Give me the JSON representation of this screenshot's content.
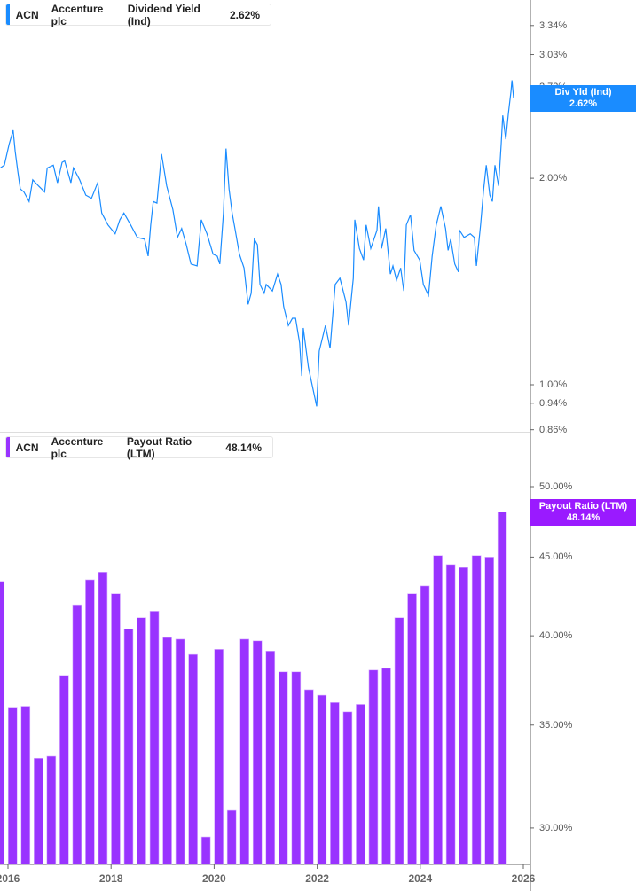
{
  "colors": {
    "yield_line": "#1a8cff",
    "bars": "#9933ff",
    "bar_edge": "#d9b3ff",
    "axis": "#999999"
  },
  "top_legend": {
    "ticker": "ACN",
    "company": "Accenture plc",
    "metric": "Dividend Yield (Ind)",
    "value": "2.62%"
  },
  "bottom_legend": {
    "ticker": "ACN",
    "company": "Accenture plc",
    "metric": "Payout Ratio (LTM)",
    "value": "48.14%"
  },
  "top_badge": {
    "label": "Div Yld (Ind)",
    "value": "2.62%"
  },
  "bottom_badge": {
    "label": "Payout Ratio (LTM)",
    "value": "48.14%"
  },
  "chart_data": [
    {
      "type": "line",
      "series": [
        {
          "name": "Dividend Yield (Ind)",
          "x_years": [
            2015.85,
            2015.93,
            2016.02,
            2016.1,
            2016.14,
            2016.19,
            2016.24,
            2016.31,
            2016.41,
            2016.48,
            2016.59,
            2016.71,
            2016.76,
            2016.88,
            2016.96,
            2017.05,
            2017.1,
            2017.22,
            2017.27,
            2017.39,
            2017.51,
            2017.62,
            2017.74,
            2017.82,
            2017.94,
            2018.08,
            2018.17,
            2018.25,
            2018.38,
            2018.51,
            2018.65,
            2018.72,
            2018.77,
            2018.82,
            2018.89,
            2018.98,
            2019.08,
            2019.2,
            2019.29,
            2019.37,
            2019.46,
            2019.55,
            2019.67,
            2019.75,
            2019.86,
            2019.98,
            2020.06,
            2020.11,
            2020.18,
            2020.23,
            2020.29,
            2020.35,
            2020.41,
            2020.49,
            2020.58,
            2020.66,
            2020.72,
            2020.78,
            2020.84,
            2020.89,
            2020.97,
            2021.01,
            2021.13,
            2021.23,
            2021.3,
            2021.35,
            2021.44,
            2021.52,
            2021.58,
            2021.66,
            2021.7,
            2021.73,
            2021.83,
            2021.99,
            2022.04,
            2022.16,
            2022.25,
            2022.35,
            2022.44,
            2022.56,
            2022.61,
            2022.7,
            2022.73,
            2022.82,
            2022.9,
            2022.95,
            2023.04,
            2023.16,
            2023.19,
            2023.25,
            2023.33,
            2023.42,
            2023.47,
            2023.54,
            2023.62,
            2023.68,
            2023.73,
            2023.81,
            2023.88,
            2023.99,
            2024.06,
            2024.16,
            2024.23,
            2024.31,
            2024.4,
            2024.49,
            2024.54,
            2024.59,
            2024.67,
            2024.74,
            2024.76,
            2024.85,
            2024.97,
            2025.05,
            2025.09,
            2025.17,
            2025.23,
            2025.28,
            2025.35,
            2025.4,
            2025.45,
            2025.52,
            2025.57,
            2025.6,
            2025.66,
            2025.71,
            2025.76,
            2025.78,
            2025.81
          ],
          "values": [
            2.07,
            2.09,
            2.24,
            2.35,
            2.19,
            2.05,
            1.93,
            1.91,
            1.85,
            1.99,
            1.95,
            1.91,
            2.07,
            2.09,
            1.97,
            2.11,
            2.12,
            1.97,
            2.07,
            1.99,
            1.89,
            1.87,
            1.97,
            1.78,
            1.71,
            1.66,
            1.74,
            1.78,
            1.71,
            1.64,
            1.63,
            1.54,
            1.71,
            1.85,
            1.84,
            2.17,
            1.95,
            1.8,
            1.64,
            1.69,
            1.6,
            1.5,
            1.49,
            1.74,
            1.66,
            1.55,
            1.54,
            1.5,
            1.78,
            2.21,
            1.93,
            1.78,
            1.68,
            1.55,
            1.48,
            1.31,
            1.36,
            1.63,
            1.6,
            1.4,
            1.36,
            1.4,
            1.37,
            1.45,
            1.4,
            1.3,
            1.22,
            1.25,
            1.25,
            1.15,
            1.03,
            1.21,
            1.06,
            0.93,
            1.12,
            1.22,
            1.13,
            1.4,
            1.43,
            1.32,
            1.22,
            1.43,
            1.74,
            1.58,
            1.52,
            1.71,
            1.58,
            1.68,
            1.82,
            1.58,
            1.69,
            1.45,
            1.49,
            1.42,
            1.48,
            1.37,
            1.71,
            1.77,
            1.57,
            1.52,
            1.4,
            1.35,
            1.54,
            1.71,
            1.82,
            1.69,
            1.57,
            1.63,
            1.5,
            1.46,
            1.68,
            1.64,
            1.66,
            1.64,
            1.49,
            1.71,
            1.93,
            2.09,
            1.89,
            1.85,
            2.09,
            1.95,
            2.24,
            2.47,
            2.28,
            2.49,
            2.68,
            2.78,
            2.62
          ]
        }
      ],
      "y_scale": "log",
      "ylim": [
        0.854,
        3.64
      ],
      "y_unit": "%",
      "y_ticks": [
        "3.34%",
        "3.03%",
        "2.72%",
        "2.00%",
        "1.00%",
        "0.94%",
        "0.86%"
      ],
      "y_tick_values": [
        3.34,
        3.03,
        2.72,
        2.0,
        1.0,
        0.94,
        0.86
      ],
      "grid": false,
      "legend": "top-left"
    },
    {
      "type": "bar",
      "categories": [
        "2015-11",
        "2016-02",
        "2016-05",
        "2016-08",
        "2016-11",
        "2017-02",
        "2017-05",
        "2017-08",
        "2017-11",
        "2018-02",
        "2018-05",
        "2018-08",
        "2018-11",
        "2019-02",
        "2019-05",
        "2019-08",
        "2019-11",
        "2020-02",
        "2020-05",
        "2020-08",
        "2020-11",
        "2021-02",
        "2021-05",
        "2021-08",
        "2021-11",
        "2022-02",
        "2022-05",
        "2022-08",
        "2022-11",
        "2023-02",
        "2023-05",
        "2023-08",
        "2023-11",
        "2024-02",
        "2024-05",
        "2024-08",
        "2024-11",
        "2025-02",
        "2025-05",
        "2025-08"
      ],
      "series": [
        {
          "name": "Payout Ratio (LTM)",
          "values": [
            43.4,
            35.9,
            36.0,
            33.3,
            33.4,
            37.7,
            41.9,
            43.5,
            44.0,
            42.6,
            40.4,
            41.1,
            41.5,
            39.9,
            39.8,
            38.9,
            29.6,
            39.2,
            30.8,
            39.8,
            39.7,
            39.1,
            37.9,
            37.9,
            36.9,
            36.6,
            36.2,
            35.7,
            36.1,
            38.0,
            38.1,
            41.1,
            42.6,
            43.1,
            45.1,
            44.5,
            44.3,
            45.1,
            45.0,
            48.14
          ]
        }
      ],
      "y_scale": "log",
      "ylim": [
        28.4,
        52.0
      ],
      "y_unit": "%",
      "y_ticks": [
        "50.00%",
        "45.00%",
        "40.00%",
        "35.00%",
        "30.00%"
      ],
      "y_tick_values": [
        50,
        45,
        40,
        35,
        30
      ],
      "x_ticks": [
        "2016",
        "2018",
        "2020",
        "2022",
        "2024",
        "2026"
      ],
      "x_tick_values": [
        2016,
        2018,
        2020,
        2022,
        2024,
        2026
      ],
      "grid": false,
      "legend": "top-left"
    }
  ]
}
